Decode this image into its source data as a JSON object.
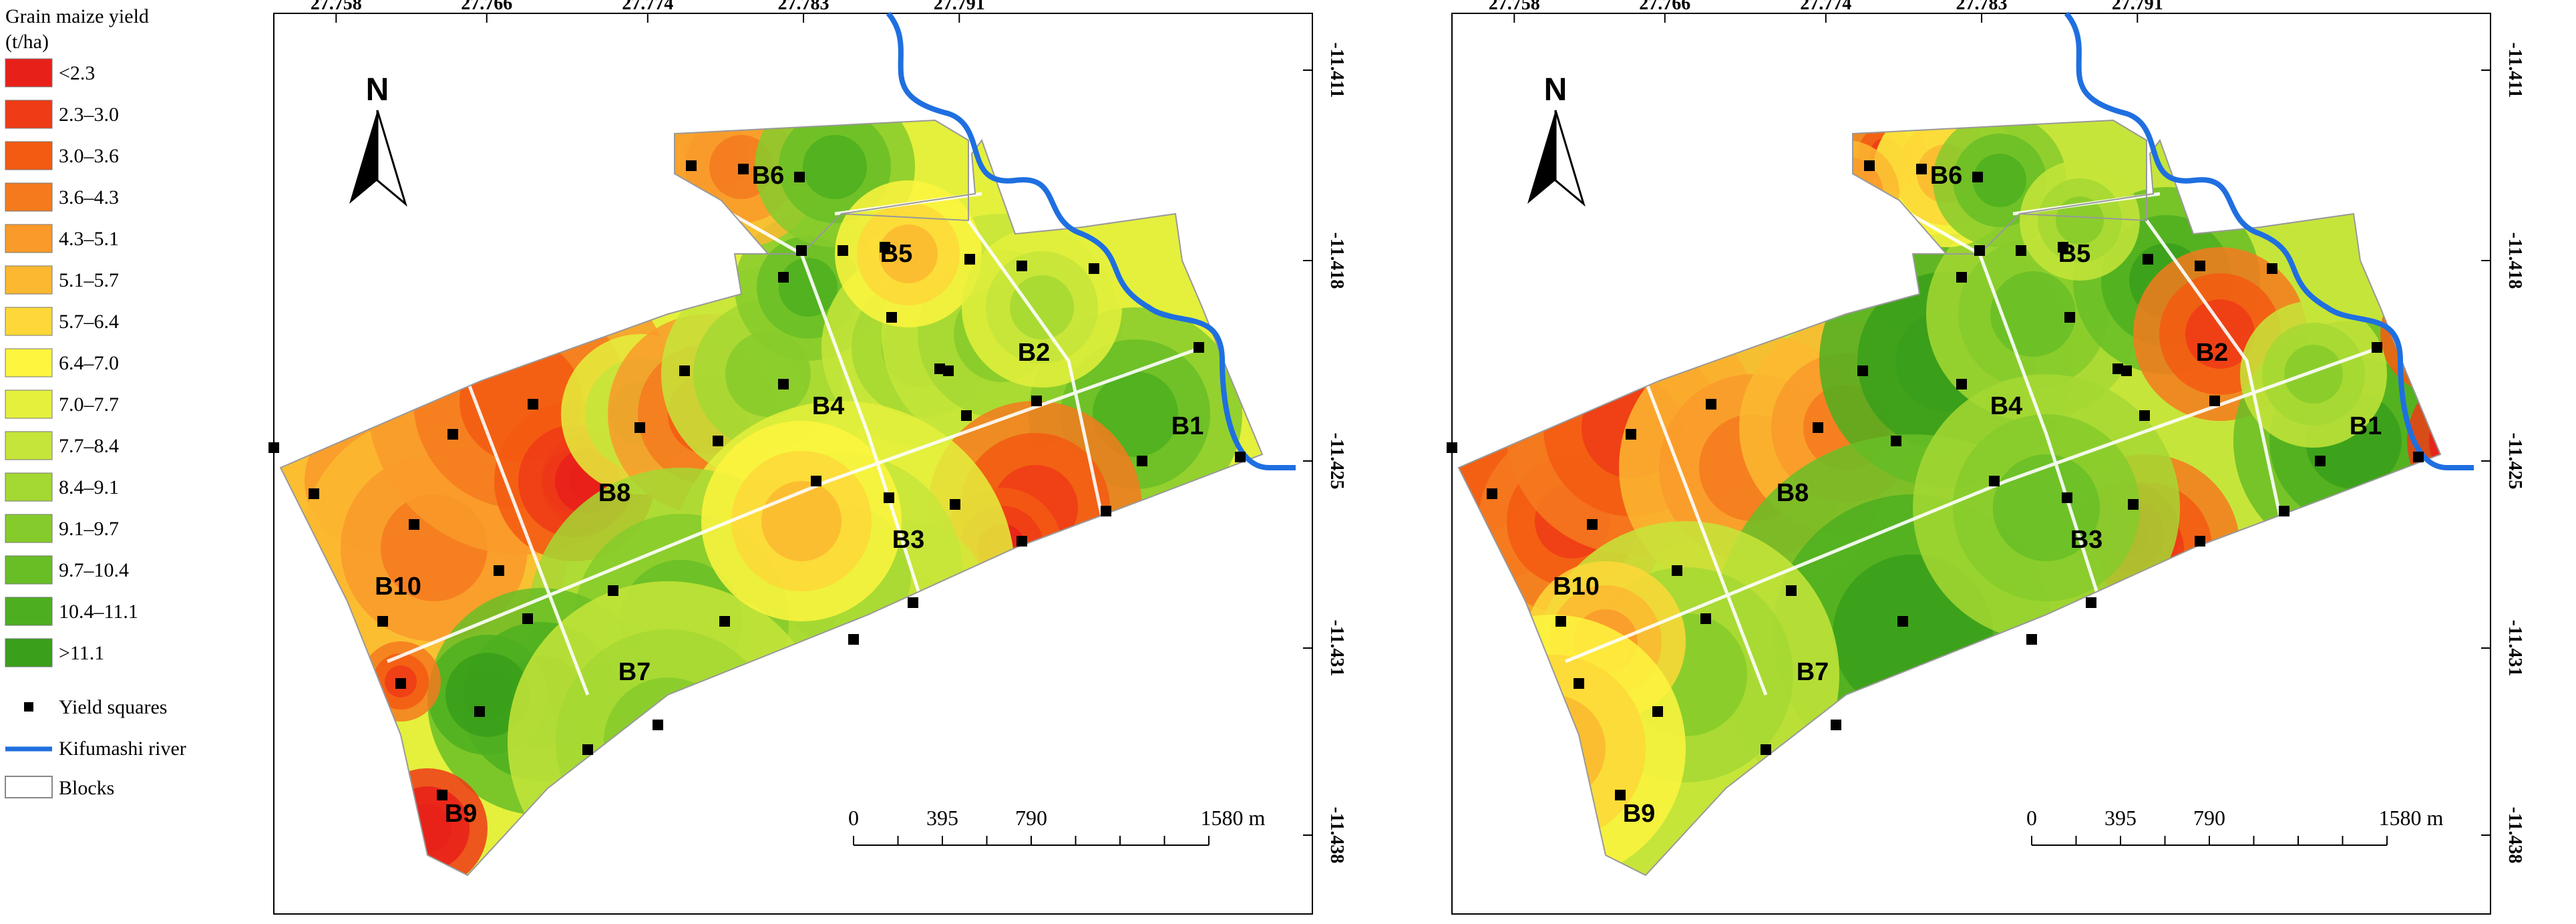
{
  "legend": {
    "title_line1": "Grain maize yield",
    "title_line2": "(t/ha)",
    "classes": [
      {
        "label": "<2.3",
        "color": "#e8201a"
      },
      {
        "label": "2.3–3.0",
        "color": "#ef3b16"
      },
      {
        "label": "3.0–3.6",
        "color": "#f35a12"
      },
      {
        "label": "3.6–4.3",
        "color": "#f57a1e"
      },
      {
        "label": "4.3–5.1",
        "color": "#f99a2a"
      },
      {
        "label": "5.1–5.7",
        "color": "#fbb830"
      },
      {
        "label": "5.7–6.4",
        "color": "#fdd838"
      },
      {
        "label": "6.4–7.0",
        "color": "#fdf53e"
      },
      {
        "label": "7.0–7.7",
        "color": "#e4f03c"
      },
      {
        "label": "7.7–8.4",
        "color": "#c6e53a"
      },
      {
        "label": "8.4–9.1",
        "color": "#a4d833"
      },
      {
        "label": "9.1–9.7",
        "color": "#86cb2c"
      },
      {
        "label": "9.7–10.4",
        "color": "#69be26"
      },
      {
        "label": "10.4–11.1",
        "color": "#4daf20"
      },
      {
        "label": ">11.1",
        "color": "#3a9f1a"
      }
    ],
    "yield_squares_label": "Yield squares",
    "river_label": "Kifumashi river",
    "blocks_label": "Blocks",
    "river_color": "#1f6fe0"
  },
  "top_ticks": [
    "27.758",
    "27.766",
    "27.774",
    "27.783",
    "27.791"
  ],
  "right_ticks": [
    "-11.411",
    "-11.418",
    "-11.425",
    "-11.431",
    "-11.438"
  ],
  "north_label": "N",
  "scale": {
    "labels": [
      "0",
      "395",
      "790",
      "1580 m"
    ]
  },
  "maps": [
    {
      "blocks": {
        "B1": "B1",
        "B2": "B2",
        "B3": "B3",
        "B4": "B4",
        "B5": "B5",
        "B6": "B6",
        "B7": "B7",
        "B8": "B8",
        "B9": "B9",
        "B10": "B10"
      }
    },
    {
      "blocks": {
        "B1": "B1",
        "B2": "B2",
        "B3": "B3",
        "B4": "B4",
        "B5": "B5",
        "B6": "B6",
        "B7": "B7",
        "B8": "B8",
        "B9": "B9",
        "B10": "B10"
      }
    }
  ]
}
